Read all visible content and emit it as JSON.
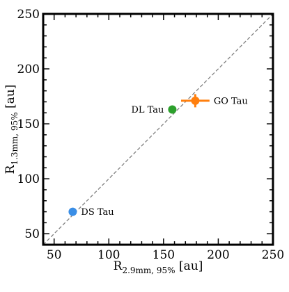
{
  "chart_data": {
    "type": "scatter",
    "title": "",
    "xlabel": {
      "main": "R",
      "sub": "2.9mm, 95%",
      "unit": " [au]"
    },
    "ylabel": {
      "main": "R",
      "sub": "1.3mm, 95%",
      "unit": " [au]"
    },
    "xlim": [
      40,
      250
    ],
    "ylim": [
      40,
      250
    ],
    "xticks": [
      50,
      100,
      150,
      200,
      250
    ],
    "yticks": [
      50,
      100,
      150,
      200,
      250
    ],
    "grid": false,
    "reference_line": {
      "style": "dashed",
      "color": "#808080",
      "x": [
        40,
        250
      ],
      "y": [
        40,
        250
      ]
    },
    "points": [
      {
        "label": "DS Tau",
        "x": 67,
        "y": 70,
        "xerr": 0,
        "yerr": 0,
        "color": "#3a8ee6",
        "label_side": "right"
      },
      {
        "label": "DL Tau",
        "x": 158,
        "y": 163,
        "xerr": 0,
        "yerr": 0,
        "color": "#2ca02c",
        "label_side": "left"
      },
      {
        "label": "GO Tau",
        "x": 179,
        "y": 171,
        "xerr": 13,
        "yerr": 6,
        "color": "#ff7f0e",
        "label_side": "right"
      }
    ]
  }
}
